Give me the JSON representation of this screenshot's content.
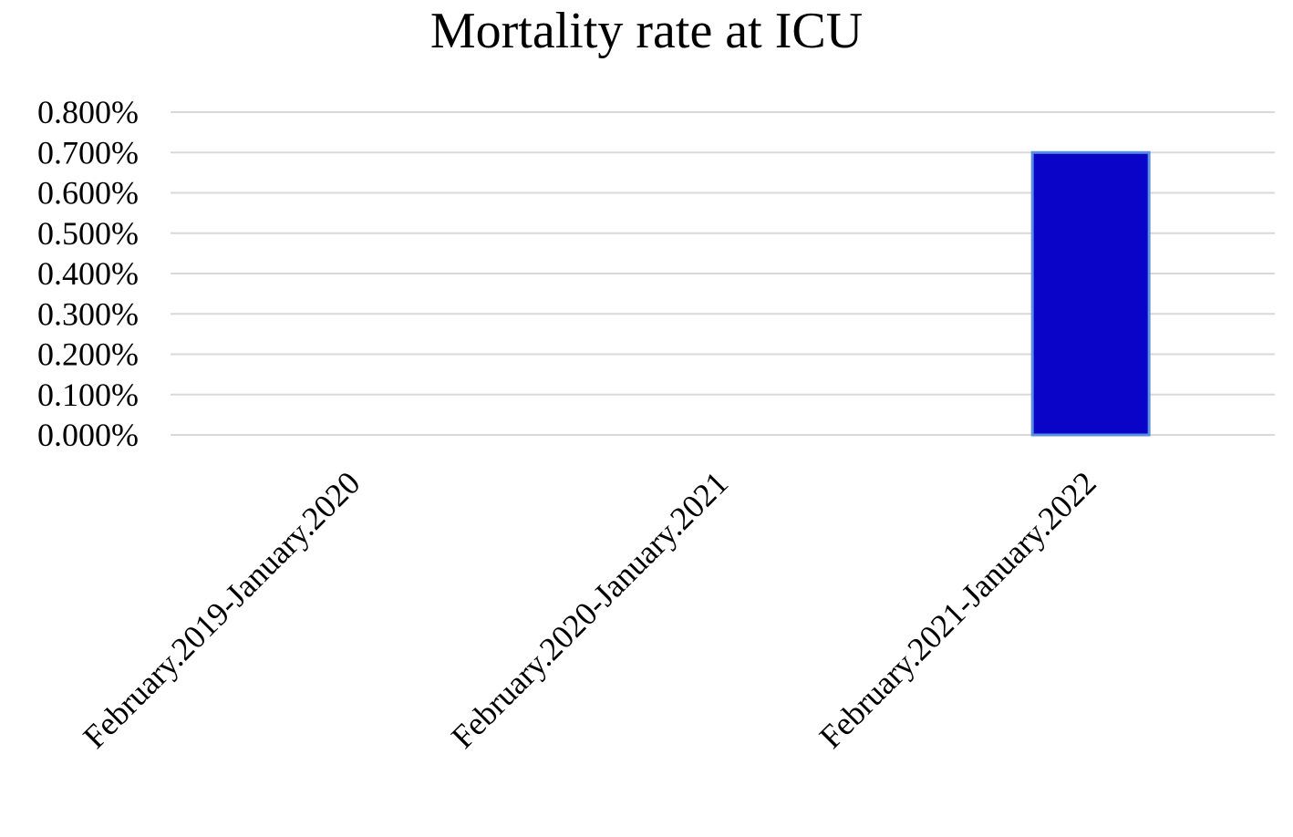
{
  "chart_data": {
    "type": "bar",
    "title": "Mortality rate at ICU",
    "xlabel": "",
    "ylabel": "",
    "categories": [
      "February.2019-January.2020",
      "February.2020-January.2021",
      "February.2021-January.2022"
    ],
    "values": [
      0.0,
      0.0,
      0.7
    ],
    "value_unit": "%",
    "ylim": [
      0,
      0.8
    ],
    "yticks": [
      0.0,
      0.1,
      0.2,
      0.3,
      0.4,
      0.5,
      0.6,
      0.7,
      0.8
    ],
    "ytick_labels": [
      "0.000%",
      "0.100%",
      "0.200%",
      "0.300%",
      "0.400%",
      "0.500%",
      "0.600%",
      "0.700%",
      "0.800%"
    ],
    "grid": true,
    "legend": "none",
    "bar_color": "#0a04c8",
    "bar_edge_color": "#5b8ede",
    "grid_color": "#d9d9d9"
  }
}
